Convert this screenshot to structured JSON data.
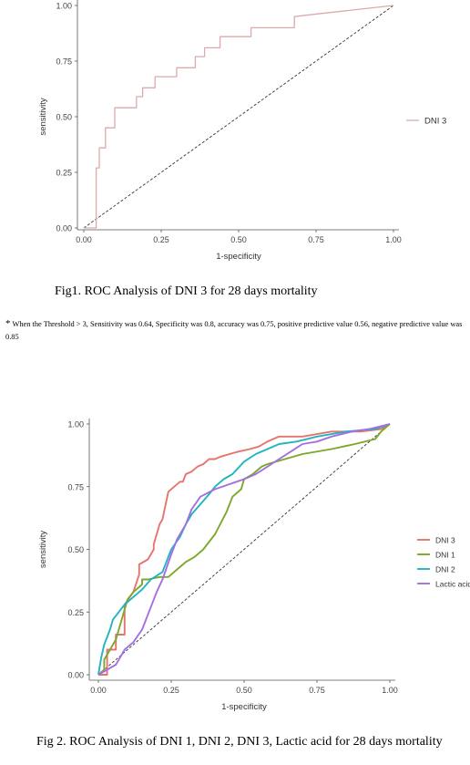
{
  "chart_data": [
    {
      "type": "line",
      "title": "",
      "xlabel": "1-specificity",
      "ylabel": "sensitivity",
      "xlim": [
        0,
        1
      ],
      "ylim": [
        0,
        1
      ],
      "xticks": [
        "0.00",
        "0.25",
        "0.50",
        "0.75",
        "1.00"
      ],
      "yticks": [
        "0.00",
        "0.25",
        "0.50",
        "0.75",
        "1.00"
      ],
      "grid": false,
      "legend": "right",
      "reference_line": "diagonal",
      "series": [
        {
          "name": "DNI 3",
          "color": "#dcaaaa",
          "x": [
            0,
            0.04,
            0.04,
            0.05,
            0.05,
            0.07,
            0.07,
            0.1,
            0.1,
            0.12,
            0.12,
            0.17,
            0.17,
            0.19,
            0.19,
            0.21,
            0.21,
            0.23,
            0.23,
            0.3,
            0.3,
            0.36,
            0.36,
            0.39,
            0.39,
            0.44,
            0.44,
            0.5,
            0.5,
            0.54,
            0.54,
            0.58,
            0.58,
            0.68,
            0.68,
            0.74,
            1.0
          ],
          "y": [
            0,
            0,
            0.27,
            0.27,
            0.36,
            0.36,
            0.45,
            0.45,
            0.54,
            0.54,
            0.54,
            0.54,
            0.59,
            0.59,
            0.63,
            0.63,
            0.63,
            0.63,
            0.68,
            0.68,
            0.72,
            0.72,
            0.77,
            0.77,
            0.81,
            0.81,
            0.86,
            0.86,
            0.86,
            0.86,
            0.9,
            0.9,
            0.9,
            0.9,
            0.95,
            0.96,
            1.0
          ]
        }
      ]
    },
    {
      "type": "line",
      "title": "",
      "xlabel": "1-specificity",
      "ylabel": "sensitivity",
      "xlim": [
        0,
        1
      ],
      "ylim": [
        0,
        1
      ],
      "xticks": [
        "0.00",
        "0.25",
        "0.50",
        "0.75",
        "1.00"
      ],
      "yticks": [
        "0.00",
        "0.25",
        "0.50",
        "0.75",
        "1.00"
      ],
      "grid": false,
      "legend": "right",
      "reference_line": "diagonal",
      "series": [
        {
          "name": "DNI 3",
          "color": "#e8736c",
          "x": [
            0,
            0.03,
            0.03,
            0.06,
            0.06,
            0.09,
            0.09,
            0.12,
            0.14,
            0.14,
            0.17,
            0.19,
            0.19,
            0.21,
            0.22,
            0.24,
            0.26,
            0.28,
            0.29,
            0.3,
            0.32,
            0.34,
            0.36,
            0.38,
            0.4,
            0.42,
            0.45,
            0.48,
            0.52,
            0.55,
            0.58,
            0.62,
            0.7,
            0.8,
            0.9,
            0.97,
            1.0
          ],
          "y": [
            0,
            0,
            0.1,
            0.1,
            0.16,
            0.16,
            0.28,
            0.33,
            0.4,
            0.44,
            0.46,
            0.5,
            0.52,
            0.6,
            0.62,
            0.73,
            0.75,
            0.77,
            0.77,
            0.8,
            0.81,
            0.83,
            0.84,
            0.86,
            0.86,
            0.87,
            0.88,
            0.89,
            0.9,
            0.91,
            0.93,
            0.95,
            0.95,
            0.97,
            0.97,
            0.98,
            1.0
          ]
        },
        {
          "name": "DNI 1",
          "color": "#7ca82b",
          "x": [
            0,
            0.02,
            0.02,
            0.04,
            0.06,
            0.08,
            0.1,
            0.12,
            0.15,
            0.15,
            0.17,
            0.21,
            0.24,
            0.27,
            0.3,
            0.33,
            0.36,
            0.4,
            0.44,
            0.46,
            0.49,
            0.5,
            0.53,
            0.55,
            0.56,
            0.58,
            0.64,
            0.7,
            0.8,
            0.88,
            0.95,
            0.97,
            1.0
          ],
          "y": [
            0,
            0.02,
            0.06,
            0.1,
            0.14,
            0.22,
            0.3,
            0.33,
            0.36,
            0.38,
            0.38,
            0.39,
            0.39,
            0.42,
            0.45,
            0.47,
            0.5,
            0.56,
            0.65,
            0.71,
            0.74,
            0.78,
            0.8,
            0.82,
            0.83,
            0.84,
            0.86,
            0.88,
            0.9,
            0.92,
            0.94,
            0.97,
            1.0
          ]
        },
        {
          "name": "DNI 2",
          "color": "#22b5bf",
          "x": [
            0,
            0.01,
            0.02,
            0.04,
            0.05,
            0.07,
            0.09,
            0.12,
            0.15,
            0.18,
            0.22,
            0.25,
            0.28,
            0.3,
            0.32,
            0.35,
            0.38,
            0.4,
            0.43,
            0.46,
            0.5,
            0.54,
            0.58,
            0.62,
            0.68,
            0.75,
            0.85,
            0.95,
            1.0
          ],
          "y": [
            0,
            0.07,
            0.12,
            0.18,
            0.22,
            0.25,
            0.28,
            0.31,
            0.34,
            0.38,
            0.41,
            0.5,
            0.55,
            0.6,
            0.64,
            0.68,
            0.72,
            0.75,
            0.78,
            0.8,
            0.85,
            0.88,
            0.9,
            0.92,
            0.93,
            0.95,
            0.97,
            0.98,
            1.0
          ]
        },
        {
          "name": "Lactic acid",
          "color": "#a46fe0",
          "x": [
            0,
            0.03,
            0.06,
            0.09,
            0.12,
            0.15,
            0.18,
            0.2,
            0.22,
            0.25,
            0.27,
            0.3,
            0.32,
            0.35,
            0.4,
            0.45,
            0.5,
            0.54,
            0.58,
            0.62,
            0.66,
            0.7,
            0.75,
            0.8,
            0.87,
            0.93,
            1.0
          ],
          "y": [
            0,
            0.02,
            0.04,
            0.1,
            0.13,
            0.18,
            0.27,
            0.33,
            0.38,
            0.48,
            0.54,
            0.6,
            0.66,
            0.71,
            0.74,
            0.76,
            0.78,
            0.8,
            0.83,
            0.86,
            0.89,
            0.92,
            0.93,
            0.95,
            0.97,
            0.98,
            1.0
          ]
        }
      ]
    }
  ],
  "captions": {
    "fig1": "Fig1. ROC Analysis of DNI 3 for 28 days mortality",
    "footnote_star": "*",
    "footnote": "When the Threshold > 3, Sensitivity was 0.64, Specificity was 0.8, accuracy was 0.75, positive predictive value 0.56, negative predictive value was 0.85",
    "fig2": "Fig 2. ROC Analysis of DNI 1, DNI 2, DNI 3, Lactic acid for 28 days mortality"
  }
}
